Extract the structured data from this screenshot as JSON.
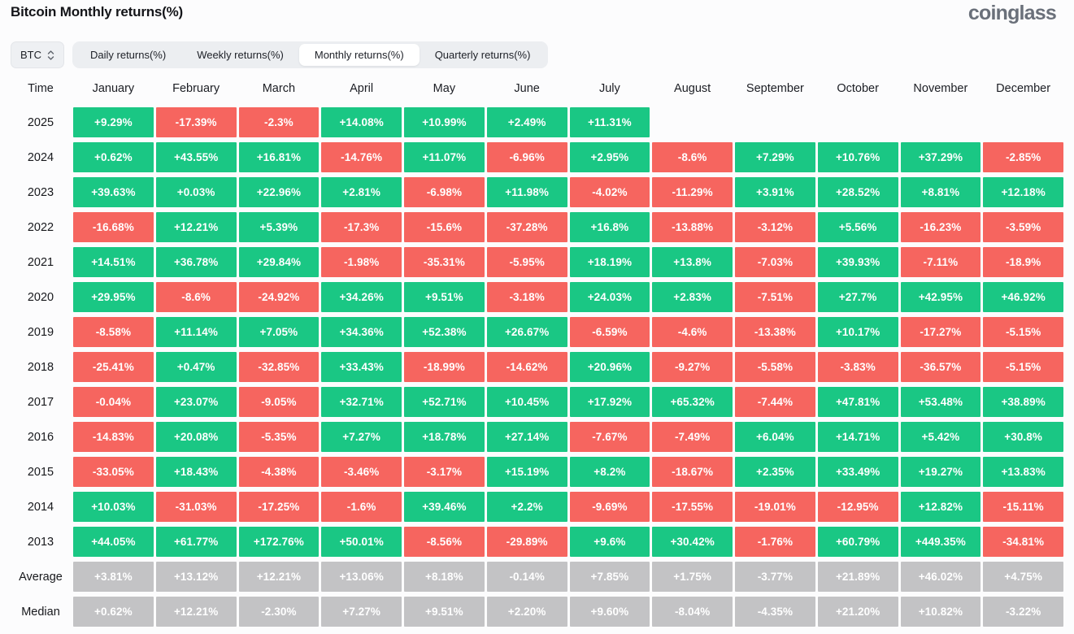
{
  "header": {
    "title": "Bitcoin Monthly returns(%)",
    "logo_text": "coinglass"
  },
  "controls": {
    "symbol_selector": {
      "value": "BTC"
    },
    "tabs": [
      {
        "label": "Daily returns(%)",
        "active": false
      },
      {
        "label": "Weekly returns(%)",
        "active": false
      },
      {
        "label": "Monthly returns(%)",
        "active": true
      },
      {
        "label": "Quarterly returns(%)",
        "active": false
      }
    ]
  },
  "colors": {
    "positive": "#1ac784",
    "negative": "#f6655f",
    "summary": "#c3c3c5"
  },
  "chart_data": {
    "type": "heatmap",
    "title": "Bitcoin Monthly returns(%)",
    "time_label": "Time",
    "months": [
      "January",
      "February",
      "March",
      "April",
      "May",
      "June",
      "July",
      "August",
      "September",
      "October",
      "November",
      "December"
    ],
    "rows": [
      {
        "label": "2025",
        "summary": false,
        "values": [
          "+9.29%",
          "-17.39%",
          "-2.3%",
          "+14.08%",
          "+10.99%",
          "+2.49%",
          "+11.31%",
          null,
          null,
          null,
          null,
          null
        ]
      },
      {
        "label": "2024",
        "summary": false,
        "values": [
          "+0.62%",
          "+43.55%",
          "+16.81%",
          "-14.76%",
          "+11.07%",
          "-6.96%",
          "+2.95%",
          "-8.6%",
          "+7.29%",
          "+10.76%",
          "+37.29%",
          "-2.85%"
        ]
      },
      {
        "label": "2023",
        "summary": false,
        "values": [
          "+39.63%",
          "+0.03%",
          "+22.96%",
          "+2.81%",
          "-6.98%",
          "+11.98%",
          "-4.02%",
          "-11.29%",
          "+3.91%",
          "+28.52%",
          "+8.81%",
          "+12.18%"
        ]
      },
      {
        "label": "2022",
        "summary": false,
        "values": [
          "-16.68%",
          "+12.21%",
          "+5.39%",
          "-17.3%",
          "-15.6%",
          "-37.28%",
          "+16.8%",
          "-13.88%",
          "-3.12%",
          "+5.56%",
          "-16.23%",
          "-3.59%"
        ]
      },
      {
        "label": "2021",
        "summary": false,
        "values": [
          "+14.51%",
          "+36.78%",
          "+29.84%",
          "-1.98%",
          "-35.31%",
          "-5.95%",
          "+18.19%",
          "+13.8%",
          "-7.03%",
          "+39.93%",
          "-7.11%",
          "-18.9%"
        ]
      },
      {
        "label": "2020",
        "summary": false,
        "values": [
          "+29.95%",
          "-8.6%",
          "-24.92%",
          "+34.26%",
          "+9.51%",
          "-3.18%",
          "+24.03%",
          "+2.83%",
          "-7.51%",
          "+27.7%",
          "+42.95%",
          "+46.92%"
        ]
      },
      {
        "label": "2019",
        "summary": false,
        "values": [
          "-8.58%",
          "+11.14%",
          "+7.05%",
          "+34.36%",
          "+52.38%",
          "+26.67%",
          "-6.59%",
          "-4.6%",
          "-13.38%",
          "+10.17%",
          "-17.27%",
          "-5.15%"
        ]
      },
      {
        "label": "2018",
        "summary": false,
        "values": [
          "-25.41%",
          "+0.47%",
          "-32.85%",
          "+33.43%",
          "-18.99%",
          "-14.62%",
          "+20.96%",
          "-9.27%",
          "-5.58%",
          "-3.83%",
          "-36.57%",
          "-5.15%"
        ]
      },
      {
        "label": "2017",
        "summary": false,
        "values": [
          "-0.04%",
          "+23.07%",
          "-9.05%",
          "+32.71%",
          "+52.71%",
          "+10.45%",
          "+17.92%",
          "+65.32%",
          "-7.44%",
          "+47.81%",
          "+53.48%",
          "+38.89%"
        ]
      },
      {
        "label": "2016",
        "summary": false,
        "values": [
          "-14.83%",
          "+20.08%",
          "-5.35%",
          "+7.27%",
          "+18.78%",
          "+27.14%",
          "-7.67%",
          "-7.49%",
          "+6.04%",
          "+14.71%",
          "+5.42%",
          "+30.8%"
        ]
      },
      {
        "label": "2015",
        "summary": false,
        "values": [
          "-33.05%",
          "+18.43%",
          "-4.38%",
          "-3.46%",
          "-3.17%",
          "+15.19%",
          "+8.2%",
          "-18.67%",
          "+2.35%",
          "+33.49%",
          "+19.27%",
          "+13.83%"
        ]
      },
      {
        "label": "2014",
        "summary": false,
        "values": [
          "+10.03%",
          "-31.03%",
          "-17.25%",
          "-1.6%",
          "+39.46%",
          "+2.2%",
          "-9.69%",
          "-17.55%",
          "-19.01%",
          "-12.95%",
          "+12.82%",
          "-15.11%"
        ]
      },
      {
        "label": "2013",
        "summary": false,
        "values": [
          "+44.05%",
          "+61.77%",
          "+172.76%",
          "+50.01%",
          "-8.56%",
          "-29.89%",
          "+9.6%",
          "+30.42%",
          "-1.76%",
          "+60.79%",
          "+449.35%",
          "-34.81%"
        ]
      },
      {
        "label": "Average",
        "summary": true,
        "values": [
          "+3.81%",
          "+13.12%",
          "+12.21%",
          "+13.06%",
          "+8.18%",
          "-0.14%",
          "+7.85%",
          "+1.75%",
          "-3.77%",
          "+21.89%",
          "+46.02%",
          "+4.75%"
        ]
      },
      {
        "label": "Median",
        "summary": true,
        "values": [
          "+0.62%",
          "+12.21%",
          "-2.30%",
          "+7.27%",
          "+9.51%",
          "+2.20%",
          "+9.60%",
          "-8.04%",
          "-4.35%",
          "+21.20%",
          "+10.82%",
          "-3.22%"
        ]
      }
    ]
  }
}
